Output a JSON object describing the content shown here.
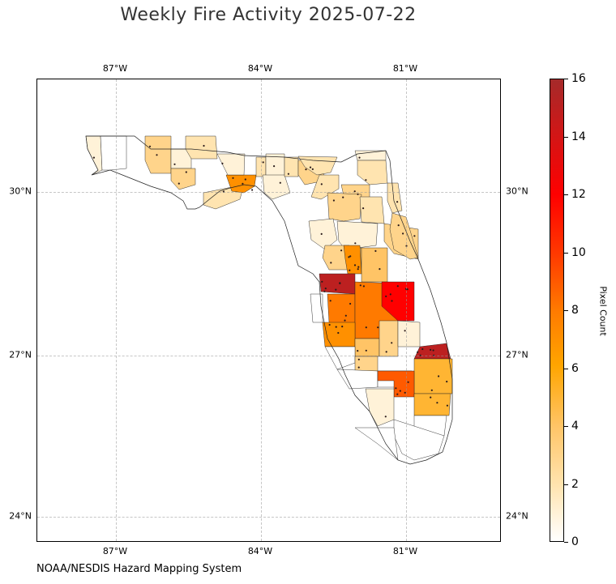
{
  "title": "Weekly Fire Activity 2025-07-22",
  "source_text": "NOAA/NESDIS Hazard Mapping System",
  "map": {
    "longitude_ticks": [
      "87°W",
      "84°W",
      "81°W"
    ],
    "latitude_ticks": [
      "30°N",
      "27°N",
      "24°N"
    ]
  },
  "colorbar": {
    "label": "Pixel Count",
    "ticks": [
      "0",
      "2",
      "4",
      "6",
      "8",
      "10",
      "12",
      "14",
      "16"
    ],
    "colors": [
      "#ffffff",
      "#ffe4b0",
      "#ffc466",
      "#ffa500",
      "#ff7a00",
      "#ff3a00",
      "#ff0000",
      "#d21616",
      "#a52a2a"
    ]
  },
  "county_counts": {
    "escambia": 1,
    "santa_rosa": 0,
    "walton": 3,
    "holmes": 1,
    "jackson": 2,
    "bay": 3,
    "gulf": 2,
    "liberty": 7,
    "wakulla": 1,
    "leon": 2,
    "jefferson": 1,
    "taylor": 1,
    "madison": 2,
    "suwannee": 3,
    "columbia": 2,
    "baker": 2,
    "nassau": 1,
    "duval": 2,
    "clay": 3,
    "st_johns": 2,
    "alachua": 3,
    "putnam": 2,
    "flagler": 3,
    "levy": 1,
    "marion": 1,
    "volusia": 3,
    "citrus": 3,
    "sumter": 4,
    "lake": 4,
    "hernando": 7,
    "pasco": 15,
    "pinellas": 0,
    "hillsborough": 8,
    "polk": 8,
    "osceola": 12,
    "manatee": 7,
    "hardee": 4,
    "highlands": 3,
    "okeechobee": 1,
    "sarasota": 0,
    "desoto": 3,
    "charlotte": 0,
    "glades": 0,
    "st_lucie": 15,
    "martin": 5,
    "hendry": 9,
    "palm_beach": 5,
    "collier": 1,
    "broward": 0,
    "miami_dade": 0,
    "monroe": 0
  }
}
